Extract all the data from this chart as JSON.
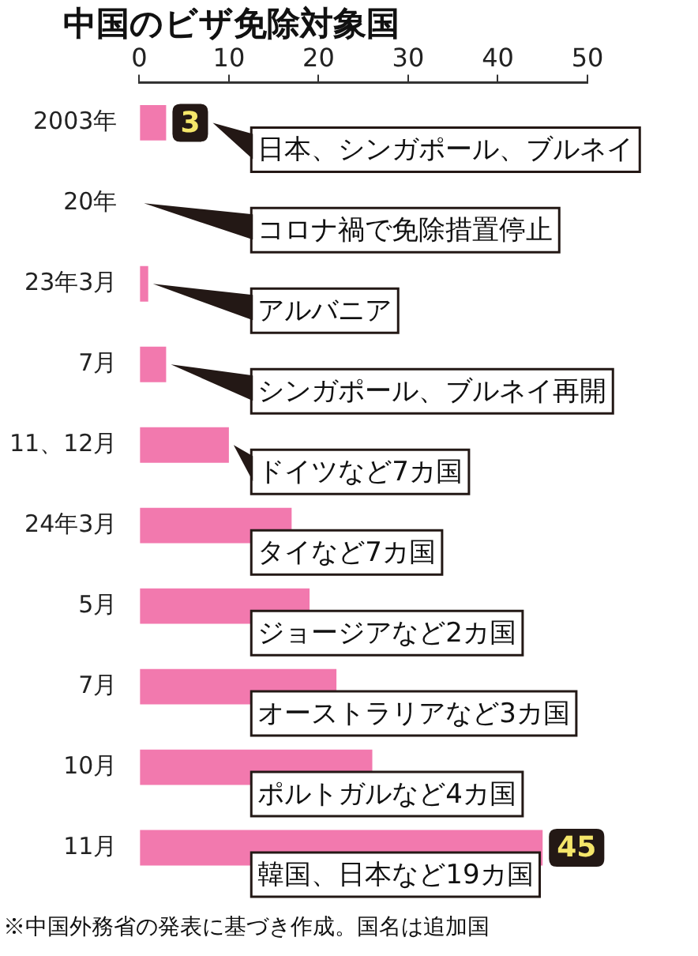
{
  "chart_data": {
    "type": "bar",
    "orientation": "horizontal",
    "title": "中国のビザ免除対象国",
    "categories": [
      "2003年",
      "20年",
      "23年3月",
      "7月",
      "11、12月",
      "24年3月",
      "5月",
      "7月",
      "10月",
      "11月"
    ],
    "values": [
      3,
      0,
      1,
      3,
      10,
      17,
      19,
      22,
      26,
      45
    ],
    "color": "#f279ae",
    "xlim": [
      0,
      50
    ],
    "xticks": [
      0,
      10,
      20,
      30,
      40,
      50
    ],
    "grid": false,
    "value_labels": [
      "3",
      null,
      null,
      null,
      null,
      null,
      null,
      null,
      null,
      "45"
    ],
    "annotations": [
      "日本、シンガポール、ブルネイ",
      "コロナ禍で免除措置停止",
      "アルバニア",
      "シンガポール、ブルネイ再開",
      "ドイツなど7カ国",
      "タイなど7カ国",
      "ジョージアなど2カ国",
      "オーストラリアなど3カ国",
      "ポルトガルなど4カ国",
      "韓国、日本など19カ国",
      "※中国外務省の発表に基づき作成。国名は追加国"
    ]
  }
}
